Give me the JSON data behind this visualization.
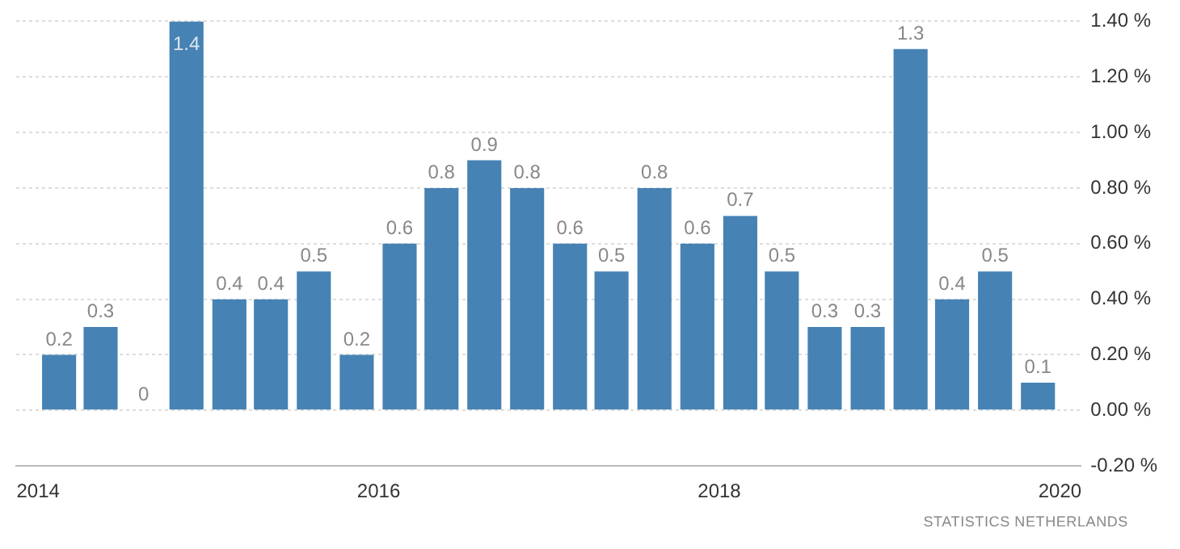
{
  "chart_data": {
    "type": "bar",
    "color": "#4682b4",
    "x": [
      "2014-02-15",
      "2014-05-15",
      "2014-08-15",
      "2014-11-15",
      "2015-02-15",
      "2015-05-15",
      "2015-08-15",
      "2015-11-15",
      "2016-02-15",
      "2016-05-15",
      "2016-08-15",
      "2016-11-15",
      "2017-02-15",
      "2017-05-15",
      "2017-08-15",
      "2017-11-15",
      "2018-02-15",
      "2018-05-15",
      "2018-08-15",
      "2018-11-15",
      "2019-02-15",
      "2019-05-15",
      "2019-08-15",
      "2019-11-15"
    ],
    "values": [
      0.2,
      0.3,
      0,
      1.4,
      0.4,
      0.4,
      0.5,
      0.2,
      0.6,
      0.8,
      0.9,
      0.8,
      0.6,
      0.5,
      0.8,
      0.6,
      0.7,
      0.5,
      0.3,
      0.3,
      1.3,
      0.4,
      0.5,
      0.1
    ],
    "data_labels": true,
    "xlim": [
      "2013-11-15",
      "2020-02-15"
    ],
    "xticks": [
      "2014",
      "2016",
      "2018",
      "2020"
    ],
    "ylim": [
      -0.2,
      1.4
    ],
    "yticks": [
      {
        "value": -0.2,
        "label": "-0.20 %"
      },
      {
        "value": 0,
        "label": "0.00 %"
      },
      {
        "value": 0.2,
        "label": "0.20 %"
      },
      {
        "value": 0.4,
        "label": "0.40 %"
      },
      {
        "value": 0.6,
        "label": "0.60 %"
      },
      {
        "value": 0.8,
        "label": "0.80 %"
      },
      {
        "value": 1,
        "label": "1.00 %"
      },
      {
        "value": 1.2,
        "label": "1.20 %"
      },
      {
        "value": 1.4,
        "label": "1.40 %"
      }
    ],
    "grid": "y",
    "legend": false,
    "annotations": [
      "STATISTICS NETHERLANDS"
    ]
  }
}
